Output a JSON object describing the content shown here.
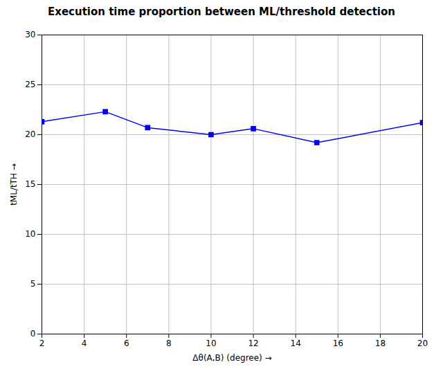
{
  "chart_data": {
    "type": "line",
    "title": "Execution time proportion between ML/threshold detection",
    "xlabel": "Δθ(A,B) (degree)",
    "ylabel": "tML/tTH",
    "x": [
      2,
      5,
      7,
      10,
      12,
      15,
      20
    ],
    "values": [
      21.3,
      22.3,
      20.7,
      20.0,
      20.6,
      19.2,
      21.2
    ],
    "color": "#0000EE",
    "marker": "square",
    "line_style": "solid",
    "xlim": [
      2,
      20
    ],
    "ylim": [
      0,
      30
    ],
    "xticks": [
      2,
      4,
      6,
      8,
      10,
      12,
      14,
      16,
      18,
      20
    ],
    "yticks": [
      0,
      5,
      10,
      15,
      20,
      25,
      30
    ],
    "grid": true
  }
}
